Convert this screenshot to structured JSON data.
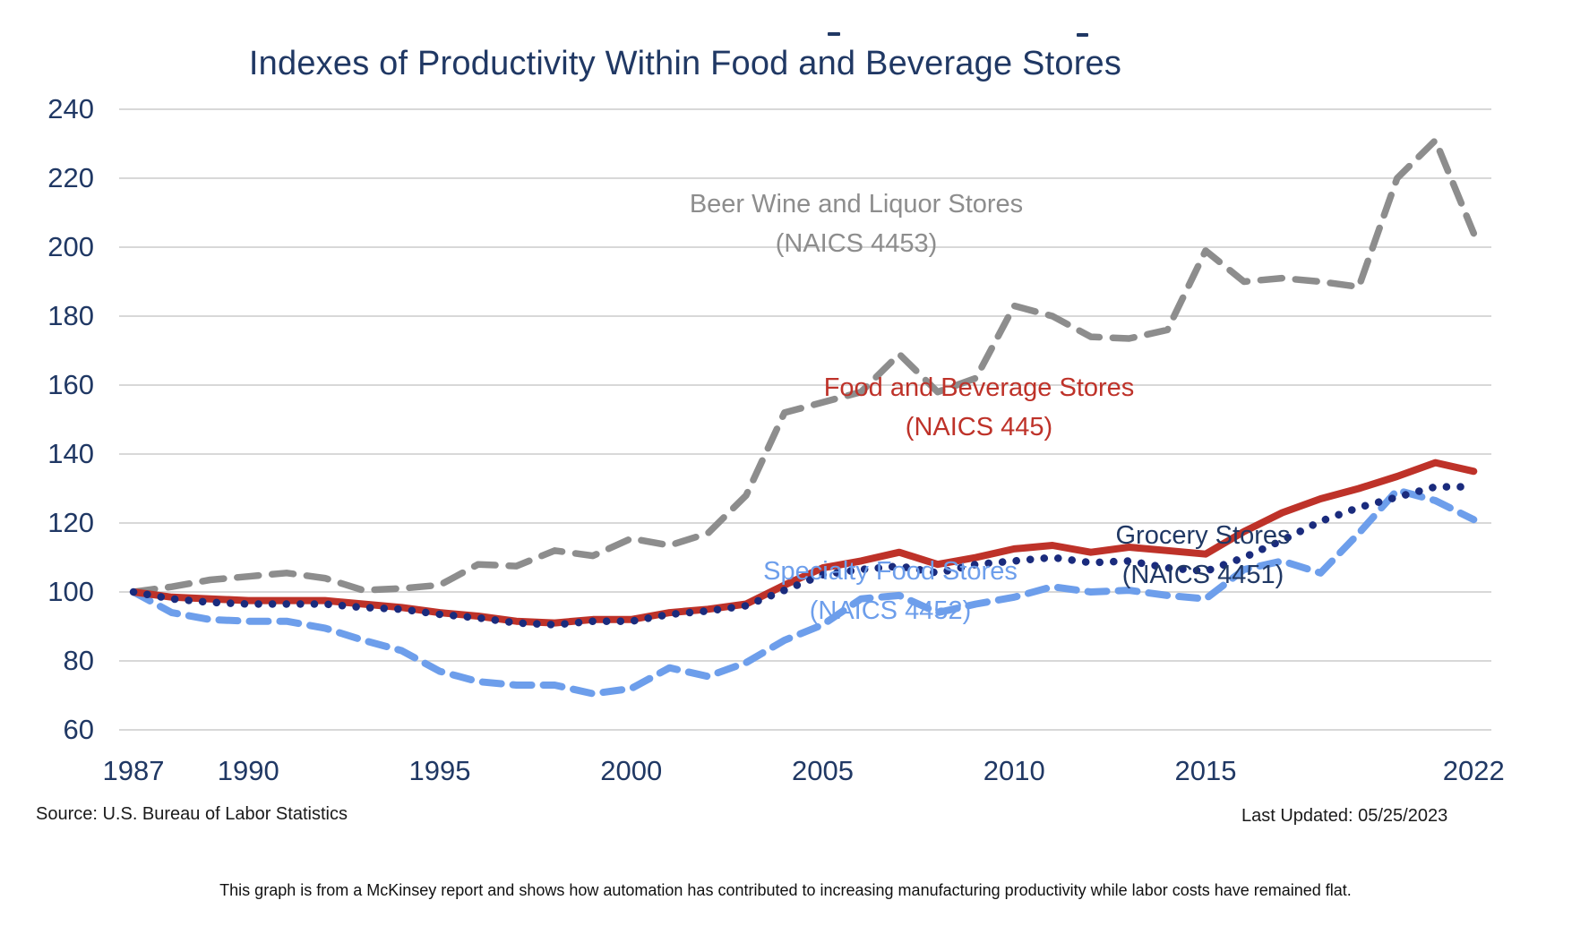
{
  "title": "Indexes of Productivity Within Food and Beverage Stores",
  "footer": {
    "source": "Source: U.S. Bureau of Labor Statistics",
    "last_updated": "Last Updated: 05/25/2023"
  },
  "caption": "This graph is from a McKinsey report  and shows how automation has contributed to increasing manufacturing productivity while labor costs have remained flat.",
  "colors": {
    "navy_text": "#203864",
    "grid": "#d8d8d8",
    "beer_gray": "#8d8d8d",
    "food_red": "#be3229",
    "grocery_navy": "#1a2b7d",
    "specialty_blue": "#6d9eeb",
    "footer_black": "#1a1a1a"
  },
  "chart_data": {
    "type": "line",
    "title": "Indexes of Productivity Within Food and Beverage Stores",
    "xlabel": "",
    "ylabel": "",
    "x": [
      1987,
      1988,
      1989,
      1990,
      1991,
      1992,
      1993,
      1994,
      1995,
      1996,
      1997,
      1998,
      1999,
      2000,
      2001,
      2002,
      2003,
      2004,
      2005,
      2006,
      2007,
      2008,
      2009,
      2010,
      2011,
      2012,
      2013,
      2014,
      2015,
      2016,
      2017,
      2018,
      2019,
      2020,
      2021,
      2022
    ],
    "x_tick_labels": [
      "1987",
      "1990",
      "1995",
      "2000",
      "2005",
      "2010",
      "2015",
      "2022"
    ],
    "x_tick_years": [
      1987,
      1990,
      1995,
      2000,
      2005,
      2010,
      2015,
      2022
    ],
    "y_ticks": [
      240,
      220,
      200,
      180,
      160,
      140,
      120,
      100,
      80,
      60
    ],
    "ylim": [
      55,
      248
    ],
    "grid": "horizontal",
    "legend_position": "inline-labels",
    "series": [
      {
        "name": "Beer Wine and Liquor Stores",
        "naics": "(NAICS 4453)",
        "color": "#8d8d8d",
        "style": "dashed",
        "values": [
          100,
          101.5,
          103.5,
          104.5,
          105.5,
          104,
          100.5,
          101,
          102,
          108,
          107.5,
          112,
          110.5,
          115.5,
          113.5,
          117,
          128,
          152,
          155,
          158,
          169,
          158,
          162,
          183,
          180,
          174,
          173.5,
          176,
          199,
          190,
          191,
          190,
          188.5,
          220,
          231,
          204
        ]
      },
      {
        "name": "Food and Beverage Stores",
        "naics": "(NAICS 445)",
        "color": "#be3229",
        "style": "solid",
        "values": [
          100,
          98.5,
          98,
          97.5,
          97.5,
          97.5,
          96.5,
          95.5,
          94,
          93,
          91.5,
          91,
          92,
          92,
          94,
          95,
          96.5,
          102,
          107,
          109,
          111.5,
          108,
          110,
          112.5,
          113.5,
          111.5,
          113,
          112,
          111,
          117.5,
          123,
          127,
          130,
          133.5,
          137.5,
          135
        ]
      },
      {
        "name": "Grocery Stores",
        "naics": "(NAICS 4451)",
        "color": "#1a2b7d",
        "style": "dotted",
        "values": [
          100,
          98,
          97,
          96.5,
          96.5,
          96.5,
          95.5,
          95,
          93.5,
          92.5,
          91,
          90.5,
          91.5,
          91.5,
          93.5,
          94.5,
          96,
          100.5,
          105,
          106.5,
          107.5,
          105.5,
          108,
          109,
          110,
          108.5,
          109,
          107,
          106,
          110,
          115,
          120.5,
          124.5,
          127.5,
          130.5,
          130.5
        ]
      },
      {
        "name": "Specialty Food Stores",
        "naics": "(NAICS 4452)",
        "color": "#6d9eeb",
        "style": "dashed",
        "values": [
          100,
          94,
          92,
          91.5,
          91.5,
          89.5,
          86,
          83,
          77,
          74,
          73,
          73,
          70.5,
          72,
          78,
          75.5,
          79.5,
          86,
          90.5,
          98,
          99,
          94,
          96.5,
          98.5,
          101.5,
          100,
          100.5,
          99,
          98,
          106.5,
          109,
          105.5,
          117,
          129.5,
          126.5,
          121
        ]
      }
    ]
  }
}
